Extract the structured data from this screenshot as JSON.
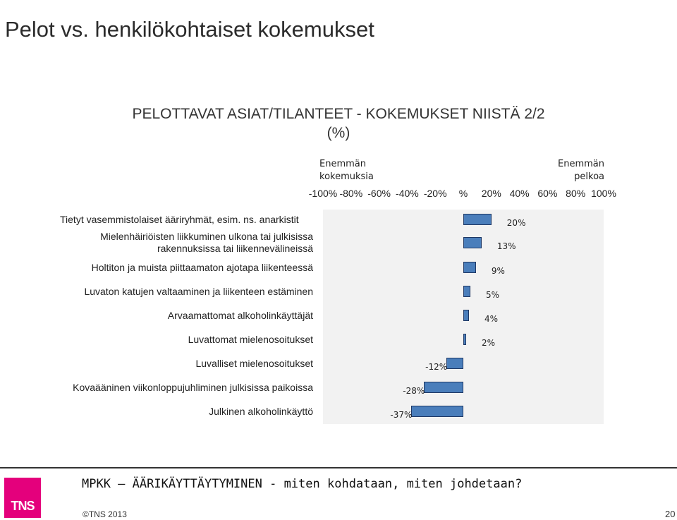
{
  "slide": {
    "title": "Pelot vs. henkilökohtaiset kokemukset",
    "footer": "MPKK – ÄÄRIKÄYTTÄYTYMINEN - miten kohdataan, miten johdetaan?",
    "copyright": "©TNS 2013",
    "page_number": "20",
    "logo_text": "TNS",
    "colors": {
      "logo": "#e4007c",
      "bar": "#4a7ebb",
      "bar_border": "#1f3864",
      "plot_bg": "#f2f2f2"
    }
  },
  "chart_data": {
    "type": "bar",
    "orientation": "horizontal",
    "title_line1": "PELOTTAVAT ASIAT/TILANTEET - KOKEMUKSET NIISTÄ 2/2",
    "title_line2": "(%)",
    "left_direction_line1": "Enemmän",
    "left_direction_line2": "kokemuksia",
    "right_direction_line1": "Enemmän",
    "right_direction_line2": "pelkoa",
    "xlim": [
      -100,
      100
    ],
    "ticks": [
      {
        "value": -100,
        "label": "-100%"
      },
      {
        "value": -80,
        "label": "-80%"
      },
      {
        "value": -60,
        "label": "-60%"
      },
      {
        "value": -40,
        "label": "-40%"
      },
      {
        "value": -20,
        "label": "-20%"
      },
      {
        "value": 0,
        "label": "%"
      },
      {
        "value": 20,
        "label": "20%"
      },
      {
        "value": 40,
        "label": "40%"
      },
      {
        "value": 60,
        "label": "60%"
      },
      {
        "value": 80,
        "label": "80%"
      },
      {
        "value": 100,
        "label": "100%"
      }
    ],
    "categories": [
      [
        "Tietyt vasemmistolaiset ääriryhmät, esim. ns. anarkistit"
      ],
      [
        "Mielenhäiriöisten liikkuminen ulkona tai julkisissa",
        "rakennuksissa tai liikennevälineissä"
      ],
      [
        "Holtiton ja muista piittaamaton ajotapa liikenteessä"
      ],
      [
        "Luvaton katujen valtaaminen ja liikenteen estäminen"
      ],
      [
        "Arvaamattomat alkoholinkäyttäjät"
      ],
      [
        "Luvattomat mielenosoitukset"
      ],
      [
        "Luvalliset mielenosoitukset"
      ],
      [
        "Kovaääninen viikonloppujuhliminen julkisissa paikoissa"
      ],
      [
        "Julkinen alkoholinkäyttö"
      ]
    ],
    "values": [
      20,
      13,
      9,
      5,
      4,
      2,
      -12,
      -28,
      -37
    ],
    "value_labels": [
      "20%",
      "13%",
      "9%",
      "5%",
      "4%",
      "2%",
      "-12%",
      "-28%",
      "-37%"
    ],
    "grid": false,
    "legend": "none"
  }
}
